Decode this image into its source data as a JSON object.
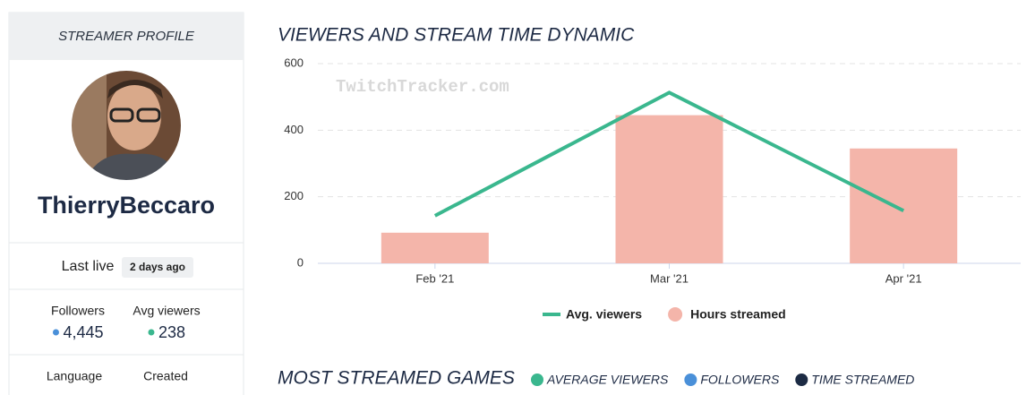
{
  "sidebar": {
    "header": "STREAMER PROFILE",
    "name": "ThierryBeccaro",
    "last_live_label": "Last live",
    "last_live_value": "2 days ago",
    "stats": [
      {
        "label": "Followers",
        "value": "4,445",
        "color": "#4a90d9"
      },
      {
        "label": "Avg viewers",
        "value": "238",
        "color": "#3ab78e"
      }
    ],
    "info_labels": [
      "Language",
      "Created"
    ]
  },
  "chart_data": {
    "type": "bar",
    "title": "VIEWERS AND STREAM TIME DYNAMIC",
    "watermark": "TwitchTracker.com",
    "categories": [
      "Feb '21",
      "Mar '21",
      "Apr '21"
    ],
    "series": [
      {
        "name": "Hours streamed",
        "type": "bar",
        "color": "#f4b5aa",
        "values": [
          92,
          445,
          345
        ]
      },
      {
        "name": "Avg. viewers",
        "type": "line",
        "color": "#3ab78e",
        "values": [
          143,
          513,
          158
        ]
      }
    ],
    "legend_order": [
      1,
      0
    ],
    "ylim": [
      0,
      600
    ],
    "yticks": [
      0,
      200,
      400,
      600
    ],
    "grid": true
  },
  "games_section": {
    "title": "MOST STREAMED GAMES",
    "legend": [
      {
        "label": "AVERAGE VIEWERS",
        "color": "#3ab78e"
      },
      {
        "label": "FOLLOWERS",
        "color": "#4a90d9"
      },
      {
        "label": "TIME STREAMED",
        "color": "#1c2b44"
      }
    ]
  }
}
